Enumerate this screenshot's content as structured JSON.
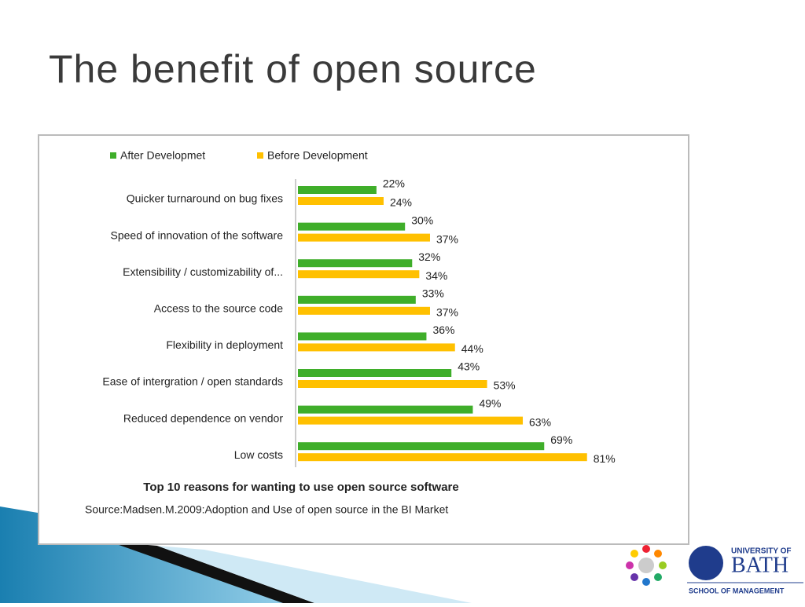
{
  "title": "The benefit of open source",
  "chart_data": {
    "type": "bar",
    "orientation": "horizontal",
    "categories": [
      "Quicker turnaround on bug fixes",
      "Speed of innovation of the software",
      "Extensibility / customizability of...",
      "Access to the source code",
      "Flexibility in deployment",
      "Ease of intergration / open standards",
      "Reduced dependence on vendor",
      "Low costs"
    ],
    "series": [
      {
        "name": "After Developmet",
        "color": "#3fae2a",
        "values": [
          22,
          30,
          32,
          33,
          36,
          43,
          49,
          69
        ],
        "value_labels": [
          "22%",
          "30%",
          "32%",
          "33%",
          "36%",
          "43%",
          "49%",
          "69%"
        ]
      },
      {
        "name": "Before Development",
        "color": "#ffc000",
        "values": [
          24,
          37,
          34,
          37,
          44,
          53,
          63,
          81
        ],
        "value_labels": [
          "24%",
          "37%",
          "34%",
          "37%",
          "44%",
          "53%",
          "63%",
          "81%"
        ]
      }
    ],
    "caption": "Top 10 reasons for wanting to use open source software",
    "source": "Source:Madsen.M.2009:Adoption and Use of open source in the BI Market",
    "legend": "top-left"
  },
  "logo": {
    "top": "UNIVERSITY OF",
    "name": "BATH",
    "bottom": "SCHOOL OF MANAGEMENT"
  }
}
